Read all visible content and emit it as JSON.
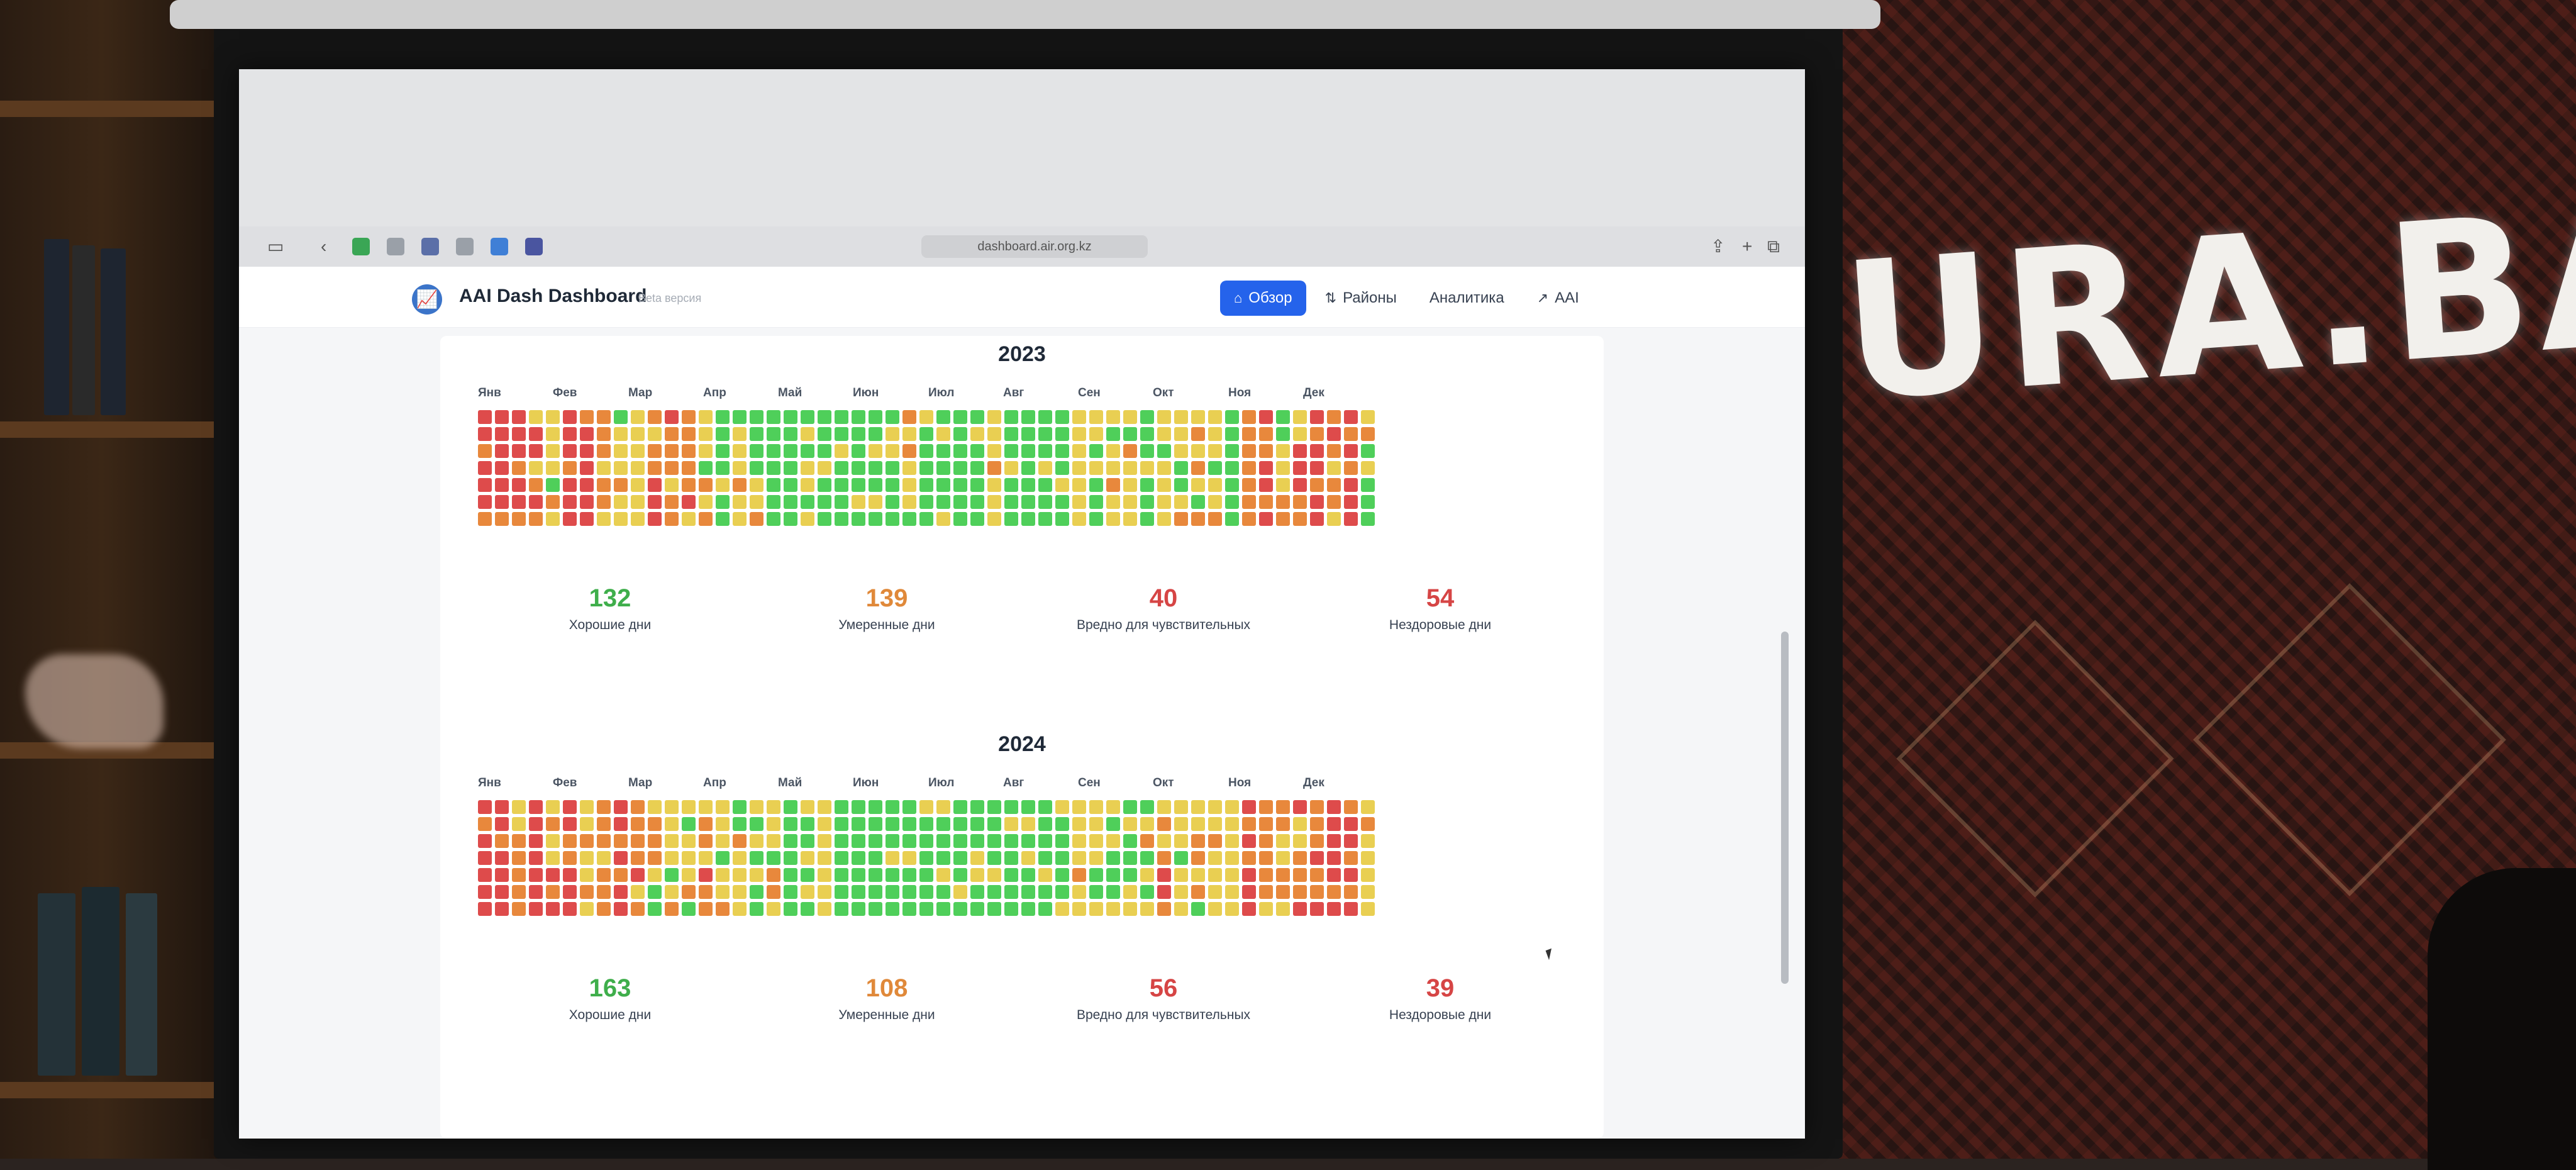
{
  "browser": {
    "url": "dashboard.air.org.kz"
  },
  "app": {
    "title": "AAI Dash Dashboard",
    "subtitle": "Beta версия"
  },
  "nav": {
    "items": [
      {
        "label": "Обзор",
        "icon": "home-icon",
        "active": true
      },
      {
        "label": "Районы",
        "icon": "refresh-icon",
        "active": false
      },
      {
        "label": "Аналитика",
        "icon": "",
        "active": false
      },
      {
        "label": "AAI",
        "icon": "external-link-icon",
        "active": false
      }
    ]
  },
  "colors": {
    "good": "#4fcf5a",
    "moderate": "#e9cf52",
    "sensitive": "#e8883c",
    "unhealthy": "#de4b4b"
  },
  "months": [
    "Янв",
    "Фев",
    "Мар",
    "Апр",
    "Май",
    "Июн",
    "Июл",
    "Авг",
    "Сен",
    "Окт",
    "Ноя",
    "Дек"
  ],
  "years": [
    {
      "year": "2023",
      "stats": [
        {
          "value": "132",
          "label": "Хорошие дни",
          "kind": "good"
        },
        {
          "value": "139",
          "label": "Умеренные дни",
          "kind": "sensitive"
        },
        {
          "value": "40",
          "label": "Вредно для чувствительных",
          "kind": "unhealthy"
        },
        {
          "value": "54",
          "label": "Нездоровые дни",
          "kind": "unhealthy"
        }
      ]
    },
    {
      "year": "2024",
      "stats": [
        {
          "value": "163",
          "label": "Хорошие дни",
          "kind": "good"
        },
        {
          "value": "108",
          "label": "Умеренные дни",
          "kind": "sensitive"
        },
        {
          "value": "56",
          "label": "Вредно для чувствительных",
          "kind": "unhealthy"
        },
        {
          "value": "39",
          "label": "Нездоровые дни",
          "kind": "unhealthy"
        }
      ]
    }
  ],
  "chart_data": [
    {
      "type": "heatmap",
      "title": "2023",
      "x": [
        "Янв",
        "Фев",
        "Мар",
        "Апр",
        "Май",
        "Июн",
        "Июл",
        "Авг",
        "Сен",
        "Окт",
        "Ноя",
        "Дек"
      ],
      "legend": [
        "Хорошие дни",
        "Умеренные дни",
        "Вредно для чувствительных",
        "Нездоровые дни"
      ],
      "month_levels": [
        [
          3,
          3,
          2,
          1
        ],
        [
          3,
          3,
          2,
          1
        ],
        [
          1,
          2,
          2,
          1
        ],
        [
          0,
          1,
          1,
          0
        ],
        [
          0,
          1,
          0,
          0
        ],
        [
          0,
          0,
          1,
          0
        ],
        [
          0,
          0,
          0,
          1
        ],
        [
          0,
          0,
          0,
          1
        ],
        [
          0,
          1,
          1,
          0
        ],
        [
          1,
          1,
          1,
          0
        ],
        [
          2,
          3,
          1,
          2
        ],
        [
          3,
          2,
          3,
          1
        ]
      ]
    },
    {
      "type": "heatmap",
      "title": "2024",
      "x": [
        "Янв",
        "Фев",
        "Мар",
        "Апр",
        "Май",
        "Июн",
        "Июл",
        "Авг",
        "Сен",
        "Окт",
        "Ноя",
        "Дек"
      ],
      "legend": [
        "Хорошие дни",
        "Умеренные дни",
        "Вредно для чувствительных",
        "Нездоровые дни"
      ],
      "month_levels": [
        [
          3,
          2,
          3,
          2
        ],
        [
          3,
          1,
          2,
          3
        ],
        [
          2,
          1,
          1,
          2
        ],
        [
          1,
          1,
          0,
          1
        ],
        [
          0,
          0,
          1,
          0
        ],
        [
          0,
          0,
          0,
          0
        ],
        [
          0,
          0,
          0,
          0
        ],
        [
          0,
          0,
          0,
          1
        ],
        [
          1,
          1,
          0,
          1
        ],
        [
          2,
          1,
          1,
          1
        ],
        [
          3,
          2,
          1,
          2
        ],
        [
          2,
          3,
          3,
          1
        ]
      ]
    }
  ]
}
